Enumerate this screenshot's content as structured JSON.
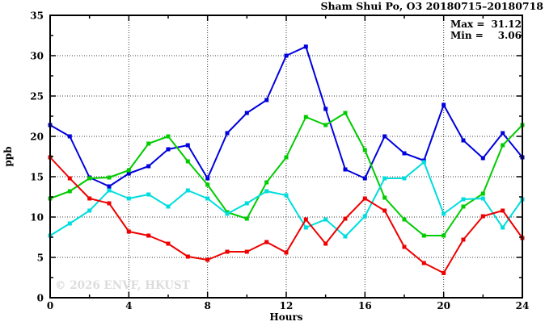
{
  "title": "Sham Shui Po, O3 20180715–20180718",
  "stats": {
    "max_key": "Max =",
    "max_val": "31.12",
    "min_key": "Min =",
    "min_val": "3.06"
  },
  "watermark": "© 2026 ENVF, HKUST",
  "colors": {
    "axis": "#000000",
    "grid": "#3a3a3a",
    "background": "#ffffff",
    "watermark": "#dcdcdc"
  },
  "chart_data": {
    "type": "line",
    "title": "Sham Shui Po, O3 20180715–20180718",
    "xlabel": "Hours",
    "ylabel": "ppb",
    "xlim": [
      0,
      24
    ],
    "ylim": [
      0,
      35
    ],
    "xticks": [
      0,
      4,
      8,
      12,
      16,
      20,
      24
    ],
    "yticks": [
      0,
      5,
      10,
      15,
      20,
      25,
      30,
      35
    ],
    "x_minor_ticks": [
      2,
      6,
      10,
      14,
      18,
      22
    ],
    "y_minor_ticks": [
      2.5,
      7.5,
      12.5,
      17.5,
      22.5,
      27.5,
      32.5
    ],
    "grid_x": [
      4,
      8,
      12,
      16,
      20
    ],
    "grid_y": [
      5,
      10,
      15,
      20,
      25,
      30
    ],
    "grid": true,
    "legend_position": "none",
    "max": 31.12,
    "min": 3.06,
    "x": [
      0,
      1,
      2,
      3,
      4,
      5,
      6,
      7,
      8,
      9,
      10,
      11,
      12,
      13,
      14,
      15,
      16,
      17,
      18,
      19,
      20,
      21,
      22,
      23,
      24
    ],
    "series": [
      {
        "name": "day-1-blue",
        "color": "#0000dd",
        "values": [
          21.4,
          20.0,
          14.9,
          13.8,
          15.4,
          16.3,
          18.4,
          18.9,
          14.8,
          20.4,
          22.9,
          24.5,
          30.0,
          31.12,
          23.4,
          15.9,
          14.8,
          20.0,
          17.9,
          17.0,
          23.9,
          19.5,
          17.3,
          20.4,
          17.4
        ]
      },
      {
        "name": "day-2-green",
        "color": "#00cc00",
        "values": [
          12.3,
          13.2,
          14.8,
          14.9,
          15.8,
          19.1,
          20.0,
          16.9,
          14.0,
          10.6,
          9.8,
          14.3,
          17.4,
          22.4,
          21.4,
          22.9,
          18.3,
          12.4,
          9.7,
          7.7,
          7.7,
          11.3,
          12.9,
          18.9,
          21.4
        ]
      },
      {
        "name": "day-3-cyan",
        "color": "#00dddd",
        "values": [
          7.7,
          9.2,
          10.8,
          13.3,
          12.3,
          12.8,
          11.3,
          13.3,
          12.3,
          10.4,
          11.7,
          13.2,
          12.7,
          8.7,
          9.7,
          7.6,
          10.1,
          14.8,
          14.8,
          16.8,
          10.4,
          12.2,
          12.3,
          8.7,
          12.2
        ]
      },
      {
        "name": "day-4-red",
        "color": "#ee0000",
        "values": [
          17.4,
          14.8,
          12.3,
          11.7,
          8.2,
          7.7,
          6.7,
          5.1,
          4.7,
          5.7,
          5.7,
          6.9,
          5.6,
          9.7,
          6.7,
          9.8,
          12.3,
          10.8,
          6.3,
          4.3,
          3.06,
          7.2,
          10.1,
          10.8,
          7.4
        ]
      }
    ]
  }
}
